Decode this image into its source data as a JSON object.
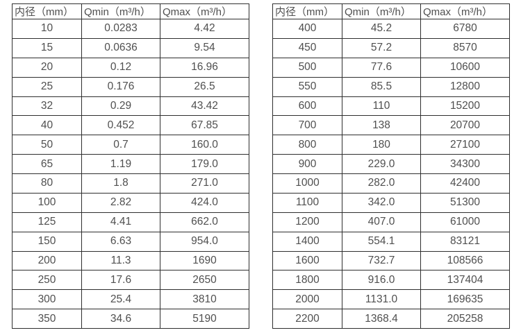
{
  "page": {
    "background_color": "#ffffff",
    "border_color": "#2e2e2e",
    "text_color": "#4f4f4f"
  },
  "tables": [
    {
      "id": "flow-rate-table-left",
      "headers": [
        "内径（mm）",
        "Qmin（m³/h）",
        "Qmax（m³/h）"
      ],
      "rows": [
        [
          "10",
          "0.0283",
          "4.42"
        ],
        [
          "15",
          "0.0636",
          "9.54"
        ],
        [
          "20",
          "0.12",
          "16.96"
        ],
        [
          "25",
          "0.176",
          "26.5"
        ],
        [
          "32",
          "0.29",
          "43.42"
        ],
        [
          "40",
          "0.452",
          "67.85"
        ],
        [
          "50",
          "0.7",
          "160.0"
        ],
        [
          "65",
          "1.19",
          "179.0"
        ],
        [
          "80",
          "1.8",
          "271.0"
        ],
        [
          "100",
          "2.82",
          "424.0"
        ],
        [
          "125",
          "4.41",
          "662.0"
        ],
        [
          "150",
          "6.63",
          "954.0"
        ],
        [
          "200",
          "11.3",
          "1690"
        ],
        [
          "250",
          "17.6",
          "2650"
        ],
        [
          "300",
          "25.4",
          "3810"
        ],
        [
          "350",
          "34.6",
          "5190"
        ]
      ]
    },
    {
      "id": "flow-rate-table-right",
      "headers": [
        "内径（mm）",
        "Qmin（m³/h）",
        "Qmax（m³/h）"
      ],
      "rows": [
        [
          "400",
          "45.2",
          "6780"
        ],
        [
          "450",
          "57.2",
          "8570"
        ],
        [
          "500",
          "77.6",
          "10600"
        ],
        [
          "550",
          "85.5",
          "12800"
        ],
        [
          "600",
          "110",
          "15200"
        ],
        [
          "700",
          "138",
          "20700"
        ],
        [
          "800",
          "180",
          "27100"
        ],
        [
          "900",
          "229.0",
          "34300"
        ],
        [
          "1000",
          "282.0",
          "42400"
        ],
        [
          "1100",
          "342.0",
          "51300"
        ],
        [
          "1200",
          "407.0",
          "61000"
        ],
        [
          "1400",
          "554.1",
          "83121"
        ],
        [
          "1600",
          "732.7",
          "108566"
        ],
        [
          "1800",
          "916.0",
          "137404"
        ],
        [
          "2000",
          "1131.0",
          "169635"
        ],
        [
          "2200",
          "1368.4",
          "205258"
        ]
      ]
    }
  ]
}
